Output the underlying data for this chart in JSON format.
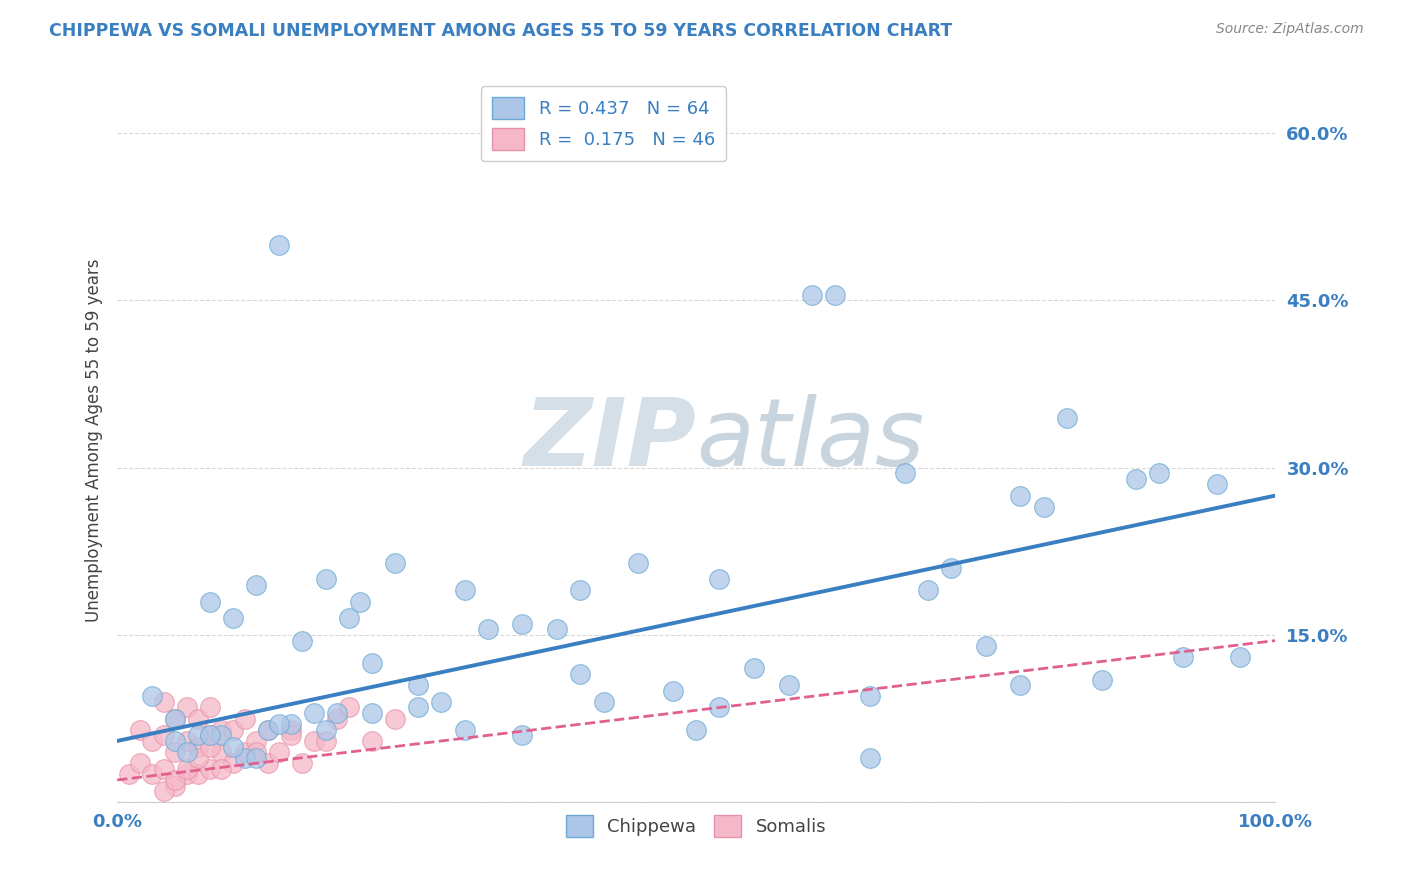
{
  "title": "CHIPPEWA VS SOMALI UNEMPLOYMENT AMONG AGES 55 TO 59 YEARS CORRELATION CHART",
  "source": "Source: ZipAtlas.com",
  "ylabel": "Unemployment Among Ages 55 to 59 years",
  "xlim": [
    0.0,
    1.0
  ],
  "ylim": [
    0.0,
    0.65
  ],
  "ytick_values": [
    0.0,
    0.15,
    0.3,
    0.45,
    0.6
  ],
  "grid_color": "#c8c8c8",
  "background_color": "#ffffff",
  "chippewa_R": 0.437,
  "chippewa_N": 64,
  "somali_R": 0.175,
  "somali_N": 46,
  "chippewa_color": "#adc6e8",
  "chippewa_edge_color": "#6aaad4",
  "chippewa_line_color": "#3a7fc1",
  "somali_color": "#f5b8c8",
  "somali_edge_color": "#e890aa",
  "somali_line_color": "#e06090",
  "chippewa_line_y0": 0.055,
  "chippewa_line_y1": 0.275,
  "somali_line_y0": 0.02,
  "somali_line_y1": 0.145,
  "chippewa_x": [
    0.03,
    0.05,
    0.07,
    0.09,
    0.11,
    0.13,
    0.15,
    0.17,
    0.19,
    0.21,
    0.05,
    0.08,
    0.1,
    0.12,
    0.14,
    0.16,
    0.18,
    0.2,
    0.22,
    0.24,
    0.26,
    0.28,
    0.3,
    0.32,
    0.35,
    0.38,
    0.4,
    0.42,
    0.45,
    0.48,
    0.5,
    0.52,
    0.55,
    0.58,
    0.6,
    0.62,
    0.65,
    0.68,
    0.7,
    0.72,
    0.75,
    0.78,
    0.8,
    0.82,
    0.85,
    0.88,
    0.9,
    0.92,
    0.95,
    0.97,
    0.06,
    0.08,
    0.1,
    0.12,
    0.14,
    0.18,
    0.22,
    0.26,
    0.3,
    0.35,
    0.4,
    0.52,
    0.65,
    0.78
  ],
  "chippewa_y": [
    0.095,
    0.075,
    0.06,
    0.06,
    0.04,
    0.065,
    0.07,
    0.08,
    0.08,
    0.18,
    0.055,
    0.18,
    0.165,
    0.195,
    0.5,
    0.145,
    0.2,
    0.165,
    0.125,
    0.215,
    0.085,
    0.09,
    0.19,
    0.155,
    0.16,
    0.155,
    0.19,
    0.09,
    0.215,
    0.1,
    0.065,
    0.2,
    0.12,
    0.105,
    0.455,
    0.455,
    0.095,
    0.295,
    0.19,
    0.21,
    0.14,
    0.105,
    0.265,
    0.345,
    0.11,
    0.29,
    0.295,
    0.13,
    0.285,
    0.13,
    0.045,
    0.06,
    0.05,
    0.04,
    0.07,
    0.065,
    0.08,
    0.105,
    0.065,
    0.06,
    0.115,
    0.085,
    0.04,
    0.275
  ],
  "somali_x": [
    0.01,
    0.02,
    0.02,
    0.03,
    0.03,
    0.04,
    0.04,
    0.04,
    0.05,
    0.05,
    0.05,
    0.06,
    0.06,
    0.06,
    0.07,
    0.07,
    0.07,
    0.08,
    0.08,
    0.08,
    0.09,
    0.09,
    0.1,
    0.1,
    0.11,
    0.11,
    0.12,
    0.13,
    0.13,
    0.14,
    0.15,
    0.16,
    0.17,
    0.18,
    0.19,
    0.2,
    0.22,
    0.24,
    0.04,
    0.05,
    0.06,
    0.07,
    0.08,
    0.09,
    0.12,
    0.15
  ],
  "somali_y": [
    0.025,
    0.035,
    0.065,
    0.025,
    0.055,
    0.03,
    0.06,
    0.09,
    0.015,
    0.045,
    0.075,
    0.025,
    0.055,
    0.085,
    0.025,
    0.05,
    0.075,
    0.03,
    0.06,
    0.085,
    0.045,
    0.065,
    0.035,
    0.065,
    0.045,
    0.075,
    0.055,
    0.035,
    0.065,
    0.045,
    0.065,
    0.035,
    0.055,
    0.055,
    0.075,
    0.085,
    0.055,
    0.075,
    0.01,
    0.02,
    0.03,
    0.04,
    0.05,
    0.03,
    0.045,
    0.06
  ]
}
